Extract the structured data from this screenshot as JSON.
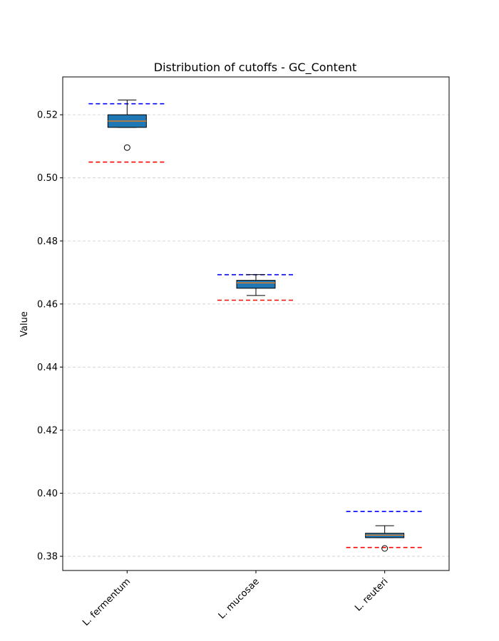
{
  "chart_data": {
    "type": "box",
    "title": "Distribution of cutoffs - GC_Content",
    "xlabel": "",
    "ylabel": "Value",
    "ylim": [
      0.3755,
      0.532
    ],
    "yticks": [
      0.38,
      0.4,
      0.42,
      0.44,
      0.46,
      0.48,
      0.5,
      0.52
    ],
    "ytick_labels": [
      "0.38",
      "0.40",
      "0.42",
      "0.44",
      "0.46",
      "0.48",
      "0.50",
      "0.52"
    ],
    "grid": "y-dashed",
    "categories": [
      "L. fermentum",
      "L. mucosae",
      "L. reuteri"
    ],
    "boxes": [
      {
        "name": "L. fermentum",
        "whislo": 0.516,
        "q1": 0.516,
        "med": 0.518,
        "q3": 0.52,
        "whishi": 0.5247,
        "fliers": [
          0.5096
        ]
      },
      {
        "name": "L. mucosae",
        "whislo": 0.4627,
        "q1": 0.465,
        "med": 0.4667,
        "q3": 0.4675,
        "whishi": 0.4693,
        "fliers": []
      },
      {
        "name": "L. reuteri",
        "whislo": 0.3859,
        "q1": 0.3859,
        "med": 0.3867,
        "q3": 0.3873,
        "whishi": 0.3897,
        "fliers": [
          0.3825
        ]
      }
    ],
    "upper_cutoffs": [
      0.5235,
      0.4693,
      0.3942
    ],
    "lower_cutoffs": [
      0.505,
      0.4612,
      0.3828
    ],
    "colors": {
      "box_fill": "#1f77b4",
      "median": "#ff7f0e",
      "upper_cutoff": "#0000ff",
      "lower_cutoff": "#ff0000",
      "grid": "#cccccc"
    }
  }
}
